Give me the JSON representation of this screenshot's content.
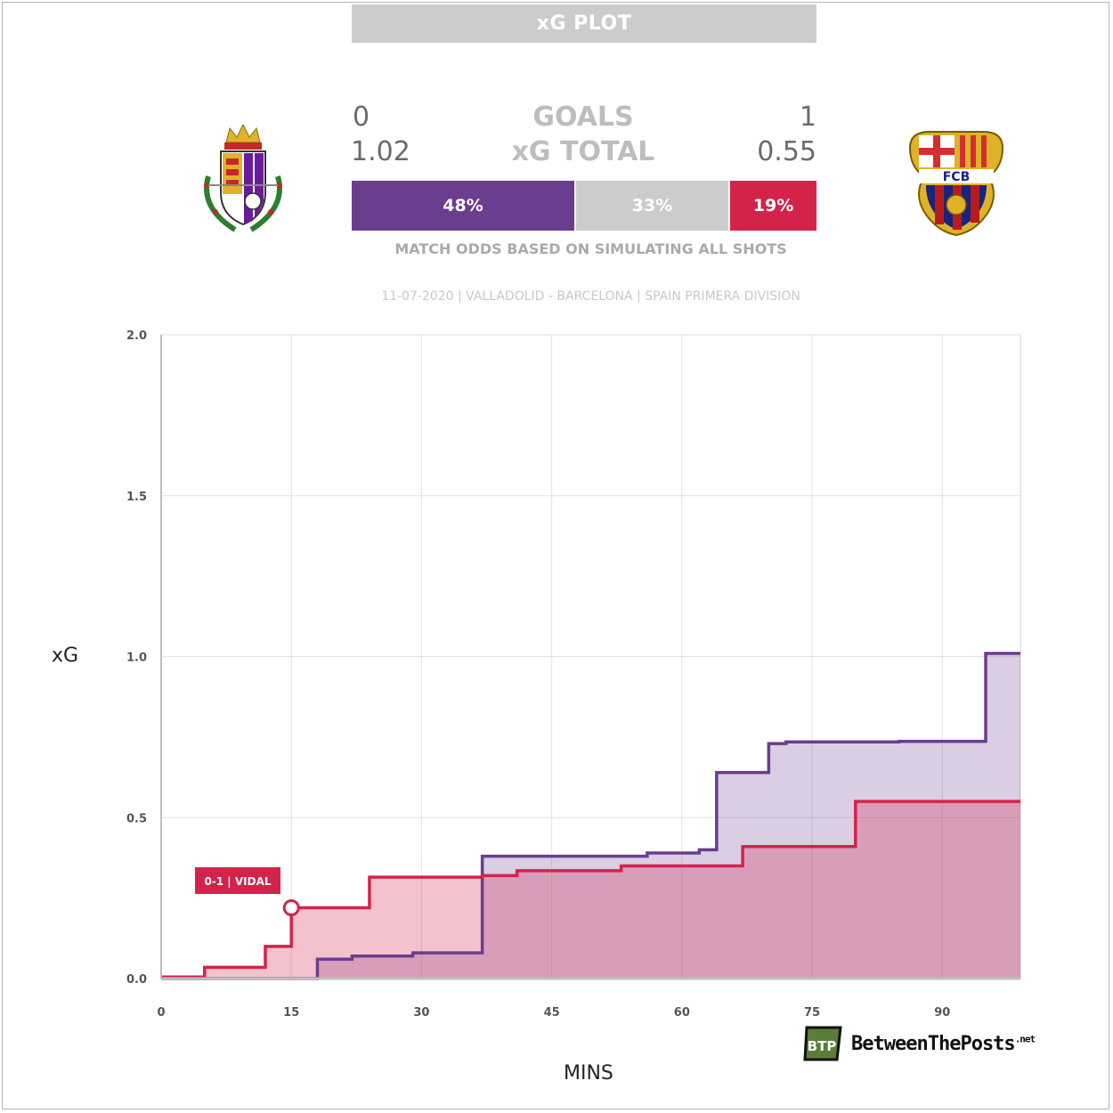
{
  "header": {
    "title": "xG PLOT"
  },
  "scoreboard": {
    "home_goals": "0",
    "away_goals": "1",
    "goals_label": "GOALS",
    "home_xg": "1.02",
    "away_xg": "0.55",
    "xg_label": "xG TOTAL"
  },
  "odds": {
    "home": "48%",
    "draw": "33%",
    "away": "19%",
    "note": "MATCH ODDS BASED ON SIMULATING ALL SHOTS"
  },
  "match_info": "11-07-2020 | VALLADOLID - BARCELONA | SPAIN PRIMERA DIVISION",
  "crests": {
    "home": "valladolid-crest-icon",
    "away": "fcb-crest-icon",
    "away_text": "FCB"
  },
  "brand": {
    "name": "BetweenThePosts",
    "suffix": ".net",
    "logo_text": "BTP"
  },
  "colors": {
    "home": "#6a3d8f",
    "away": "#d4234a",
    "draw": "#cccccc"
  },
  "chart_data": {
    "type": "line",
    "xlabel": "MINS",
    "ylabel": "xG",
    "xlim": [
      0,
      99
    ],
    "ylim": [
      0,
      2
    ],
    "x_ticks": [
      0,
      15,
      30,
      45,
      60,
      75,
      90
    ],
    "y_ticks": [
      "0.0",
      "0.5",
      "1.0",
      "1.5",
      "2.0"
    ],
    "grid": true,
    "series": [
      {
        "team": "home",
        "step": [
          [
            0,
            0
          ],
          [
            18,
            0.06
          ],
          [
            22,
            0.07
          ],
          [
            29,
            0.08
          ],
          [
            37,
            0.38
          ],
          [
            56,
            0.39
          ],
          [
            62,
            0.4
          ],
          [
            64,
            0.64
          ],
          [
            70,
            0.73
          ],
          [
            72,
            0.735
          ],
          [
            85,
            0.737
          ],
          [
            95,
            1.01
          ],
          [
            99,
            1.01
          ]
        ]
      },
      {
        "team": "away",
        "step": [
          [
            0,
            0.005
          ],
          [
            5,
            0.035
          ],
          [
            12,
            0.1
          ],
          [
            15,
            0.22
          ],
          [
            24,
            0.315
          ],
          [
            37,
            0.32
          ],
          [
            41,
            0.335
          ],
          [
            53,
            0.35
          ],
          [
            67,
            0.41
          ],
          [
            80,
            0.55
          ],
          [
            99,
            0.55
          ]
        ]
      }
    ],
    "annotations": [
      {
        "x": 15,
        "y": 0.22,
        "text": "0-1 | VIDAL",
        "team": "away"
      }
    ]
  }
}
